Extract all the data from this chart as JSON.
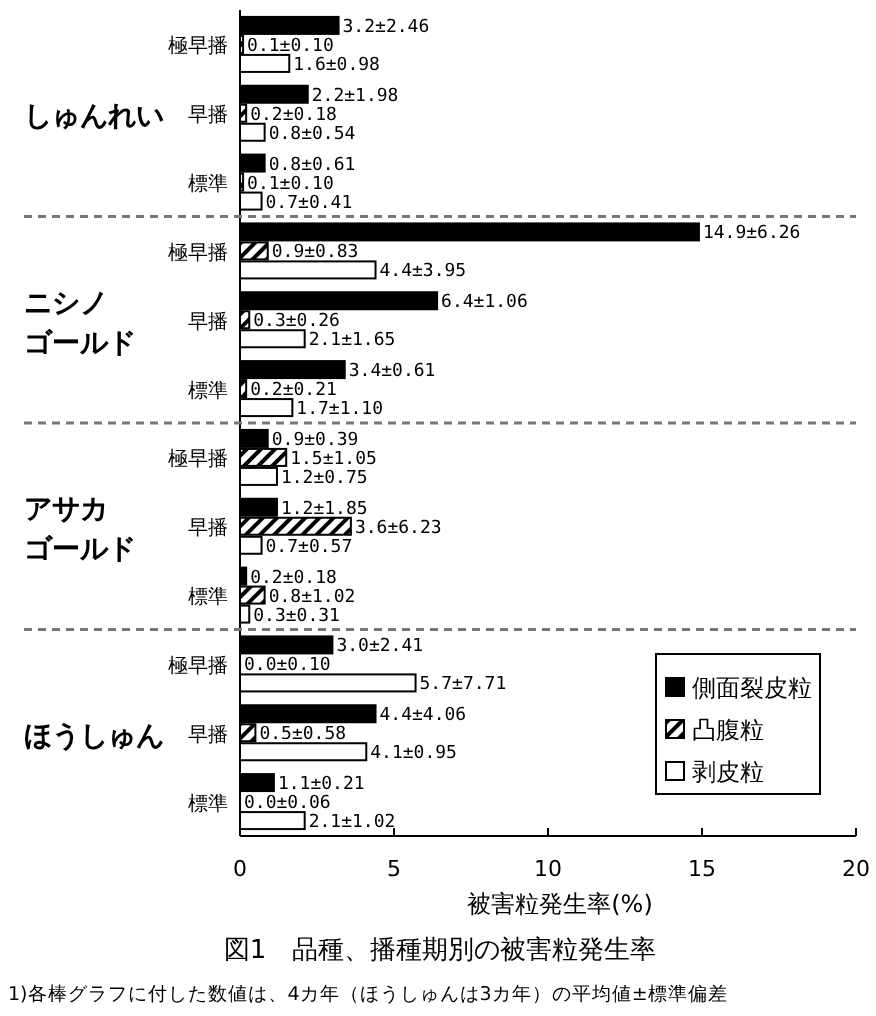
{
  "chart_data": {
    "type": "bar",
    "orientation": "horizontal",
    "title": "図1　品種、播種期別の被害粒発生率",
    "xlabel": "被害粒発生率(%)",
    "categories": [
      "極早播",
      "早播",
      "標準",
      "極早播",
      "早播",
      "標準",
      "極早播",
      "早播",
      "標準",
      "極早播",
      "早播",
      "標準"
    ],
    "series": [
      {
        "name": "側面裂皮粒",
        "color": "#000000",
        "values": [
          3.2,
          2.2,
          0.8,
          14.9,
          6.4,
          3.4,
          0.9,
          1.2,
          0.2,
          3.0,
          4.4,
          1.1
        ],
        "value_labels": [
          "3.2±2.46",
          "2.2±1.98",
          "0.8±0.61",
          "14.9±6.26",
          "6.4±1.06",
          "3.4±0.61",
          "0.9±0.39",
          "1.2±1.85",
          "0.2±0.18",
          "3.0±2.41",
          "4.4±4.06",
          "1.1±0.21"
        ]
      },
      {
        "name": "凸腹粒",
        "color": "#000000",
        "values": [
          0.1,
          0.2,
          0.1,
          0.9,
          0.3,
          0.2,
          1.5,
          3.6,
          0.8,
          0.0,
          0.5,
          0.0
        ],
        "value_labels": [
          "0.1±0.10",
          "0.2±0.18",
          "0.1±0.10",
          "0.9±0.83",
          "0.3±0.26",
          "0.2±0.21",
          "1.5±1.05",
          "3.6±6.23",
          "0.8±1.02",
          "0.0±0.10",
          "0.5±0.58",
          "0.0±0.06"
        ]
      },
      {
        "name": "剥皮粒",
        "color": "#ffffff",
        "values": [
          1.6,
          0.8,
          0.7,
          4.4,
          2.1,
          1.7,
          1.2,
          0.7,
          0.3,
          5.7,
          4.1,
          2.1
        ],
        "value_labels": [
          "1.6±0.98",
          "0.8±0.54",
          "0.7±0.41",
          "4.4±3.95",
          "2.1±1.65",
          "1.7±1.10",
          "1.2±0.75",
          "0.7±0.57",
          "0.3±0.31",
          "5.7±7.71",
          "4.1±0.95",
          "2.1±1.02"
        ]
      }
    ],
    "xlim": [
      0,
      20
    ],
    "xticks": [
      0,
      5,
      10,
      15,
      20
    ],
    "grid": false,
    "legend": "bottom right",
    "annotations": [
      "しゅんれい",
      "ニシノゴールド",
      "アサカゴールド",
      "ほうしゅん",
      "1)各棒グラフに付した数値は、4カ年（ほうしゅんは3カ年）の平均値±標準偏差"
    ]
  }
}
